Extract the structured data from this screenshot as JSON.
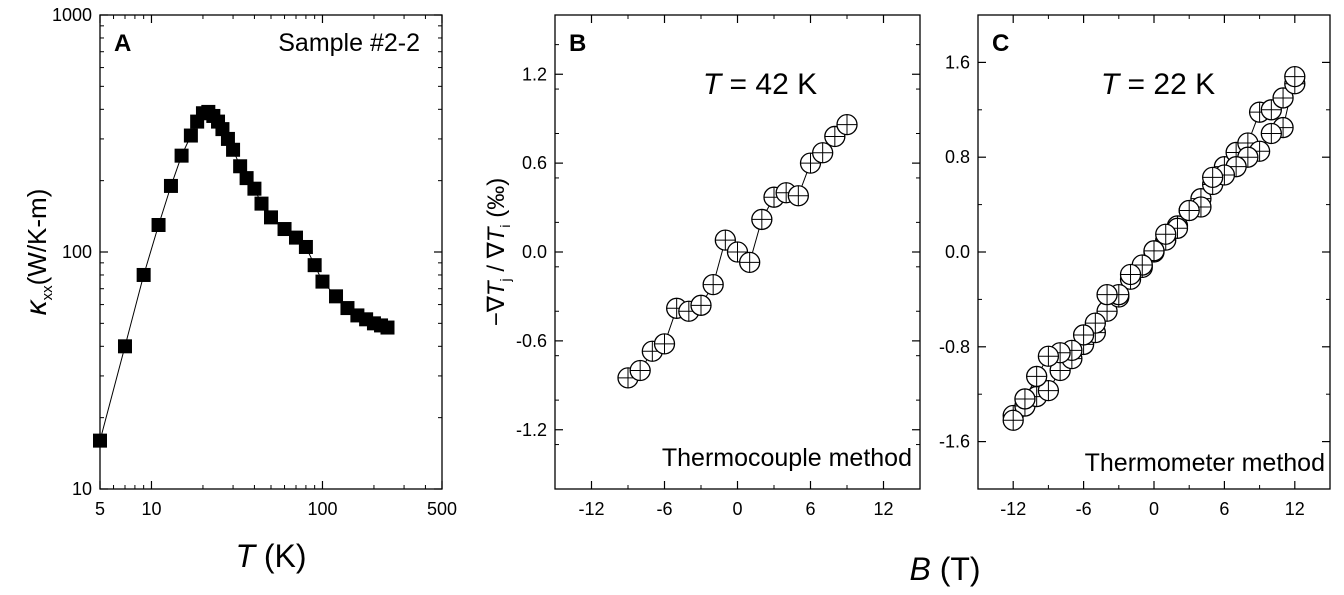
{
  "chart_data": [
    {
      "type": "line",
      "panel_label": "A",
      "annotation": "Sample #2-2",
      "x_scale": "log",
      "y_scale": "log",
      "xlim": [
        5,
        500
      ],
      "ylim": [
        10,
        1000
      ],
      "x_ticks": [
        5,
        10,
        100,
        500
      ],
      "x_tick_labels": [
        "5",
        "10",
        "100",
        "500"
      ],
      "y_ticks": [
        10,
        100,
        1000
      ],
      "y_tick_labels": [
        "10",
        "100",
        "1000"
      ],
      "xlabel_italic": "T",
      "xlabel_unit": " (K)",
      "ylabel_symbol": "κ",
      "ylabel_sub": "xx",
      "ylabel_unit": "(W/K-m)",
      "marker": "filled-square",
      "grid": false,
      "x": [
        5,
        7,
        9,
        11,
        13,
        15,
        17,
        18.5,
        20,
        21.5,
        23,
        24.5,
        26,
        28,
        30,
        33,
        36,
        40,
        44,
        50,
        60,
        70,
        80,
        90,
        100,
        120,
        140,
        160,
        180,
        200,
        220,
        240
      ],
      "y": [
        16,
        40,
        80,
        130,
        190,
        255,
        310,
        355,
        385,
        390,
        375,
        355,
        330,
        300,
        270,
        230,
        205,
        185,
        160,
        140,
        125,
        115,
        105,
        88,
        75,
        65,
        58,
        54,
        52,
        50,
        49,
        48
      ]
    },
    {
      "type": "scatter",
      "panel_label": "B",
      "temp_label_italic": "T",
      "temp_label_rest": " = 42 K",
      "annotation": "Thermocouple method",
      "xlim": [
        -15,
        15
      ],
      "ylim": [
        -1.6,
        1.6
      ],
      "x_ticks": [
        -12,
        -6,
        0,
        6,
        12
      ],
      "x_tick_labels": [
        "-12",
        "-6",
        "0",
        "6",
        "12"
      ],
      "y_ticks": [
        -1.2,
        -0.6,
        0.0,
        0.6,
        1.2
      ],
      "y_tick_labels": [
        "-1.2",
        "-0.6",
        "0.0",
        "0.6",
        "1.2"
      ],
      "ylabel_prefix": "−∇",
      "ylabel_T1": "T",
      "ylabel_sub1": "j",
      "ylabel_mid": " / ∇",
      "ylabel_T2": "T",
      "ylabel_sub2": "i",
      "ylabel_unit": " (‰)",
      "marker": "circle-plus",
      "grid": false,
      "x": [
        -9,
        -8,
        -7,
        -6,
        -5,
        -4,
        -3,
        -2,
        -1,
        0,
        1,
        2,
        3,
        4,
        5,
        6,
        7,
        8,
        9
      ],
      "y": [
        -0.85,
        -0.8,
        -0.67,
        -0.62,
        -0.38,
        -0.4,
        -0.36,
        -0.22,
        0.08,
        0.0,
        -0.07,
        0.22,
        0.37,
        0.4,
        0.38,
        0.6,
        0.67,
        0.78,
        0.86
      ]
    },
    {
      "type": "scatter",
      "panel_label": "C",
      "temp_label_italic": "T",
      "temp_label_rest": " = 22 K",
      "annotation": "Thermometer method",
      "xlim": [
        -15,
        15
      ],
      "ylim": [
        -2.0,
        2.0
      ],
      "x_ticks": [
        -12,
        -6,
        0,
        6,
        12
      ],
      "x_tick_labels": [
        "-12",
        "-6",
        "0",
        "6",
        "12"
      ],
      "y_ticks": [
        -1.6,
        -0.8,
        0.0,
        0.8,
        1.6
      ],
      "y_tick_labels": [
        "-1.6",
        "-0.8",
        "0.0",
        "0.8",
        "1.6"
      ],
      "marker": "circle-plus",
      "grid": false,
      "x": [
        -12,
        -11,
        -10,
        -9,
        -8,
        -7,
        -6,
        -5,
        -4,
        -3,
        -2,
        -1,
        0,
        1,
        2,
        3,
        4,
        5,
        6,
        7,
        8,
        9,
        10,
        11,
        12,
        12,
        11,
        10,
        9,
        8,
        7,
        6,
        5,
        4,
        3,
        2,
        1,
        0,
        -1,
        -2,
        -3,
        -4,
        -5,
        -6,
        -7,
        -8,
        -9,
        -10,
        -11,
        -12
      ],
      "y": [
        -1.38,
        -1.3,
        -1.22,
        -1.17,
        -1.0,
        -0.9,
        -0.78,
        -0.68,
        -0.5,
        -0.38,
        -0.23,
        -0.13,
        0.0,
        0.1,
        0.22,
        0.35,
        0.45,
        0.57,
        0.72,
        0.84,
        0.92,
        1.18,
        1.2,
        1.3,
        1.42,
        1.48,
        1.05,
        1.0,
        0.85,
        0.8,
        0.72,
        0.65,
        0.63,
        0.38,
        0.35,
        0.2,
        0.15,
        0.01,
        -0.11,
        -0.19,
        -0.36,
        -0.36,
        -0.6,
        -0.7,
        -0.83,
        -0.85,
        -0.88,
        -1.05,
        -1.24,
        -1.42
      ]
    }
  ],
  "shared": {
    "bc_xlabel_italic": "B",
    "bc_xlabel_unit": " (T)"
  }
}
